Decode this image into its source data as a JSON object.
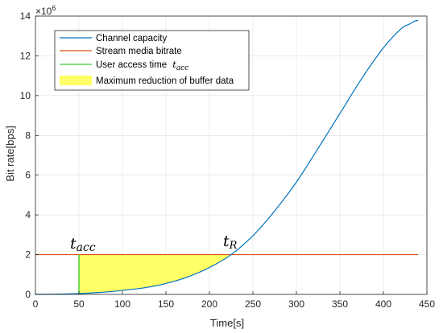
{
  "chart_data": {
    "type": "line",
    "xlabel": "Time[s]",
    "ylabel": "Bit rate[bps]",
    "exponent_label": {
      "base": "×10",
      "power": "6"
    },
    "xlim": [
      0,
      450
    ],
    "ylim": [
      0,
      14
    ],
    "x_ticks": [
      0,
      50,
      100,
      150,
      200,
      250,
      300,
      350,
      400,
      450
    ],
    "y_ticks": [
      0,
      2,
      4,
      6,
      8,
      10,
      12,
      14
    ],
    "grid": true,
    "legend_position": "top-left",
    "series": [
      {
        "name": "Channel capacity",
        "kind": "line",
        "color": "#0072BD",
        "x": [
          0,
          25,
          50,
          75,
          100,
          125,
          150,
          175,
          200,
          225,
          250,
          275,
          300,
          325,
          350,
          375,
          400,
          420,
          430,
          436,
          440
        ],
        "y": [
          0,
          0.01,
          0.04,
          0.1,
          0.2,
          0.33,
          0.55,
          0.88,
          1.35,
          2.0,
          2.95,
          4.2,
          5.65,
          7.35,
          9.1,
          10.85,
          12.4,
          13.35,
          13.6,
          13.75,
          13.78
        ]
      },
      {
        "name": "Stream media bitrate",
        "kind": "line",
        "color": "#D95319",
        "x": [
          0,
          440
        ],
        "y": [
          2,
          2
        ]
      },
      {
        "name": "User access time",
        "name_symbol": "t",
        "name_subscript": "acc",
        "kind": "vline",
        "color": "#33CC33",
        "x": [
          50,
          50
        ],
        "y": [
          0,
          2
        ]
      },
      {
        "name": "Maximum reduction of buffer data",
        "kind": "area",
        "color": "#FFFF66",
        "x_range": [
          50,
          225
        ],
        "upper": 2
      }
    ],
    "annotations": [
      {
        "symbol": "t",
        "subscript": "acc",
        "x": 50,
        "y": 2.1
      },
      {
        "symbol": "t",
        "subscript": "R",
        "x": 225,
        "y": 2.1
      }
    ]
  }
}
